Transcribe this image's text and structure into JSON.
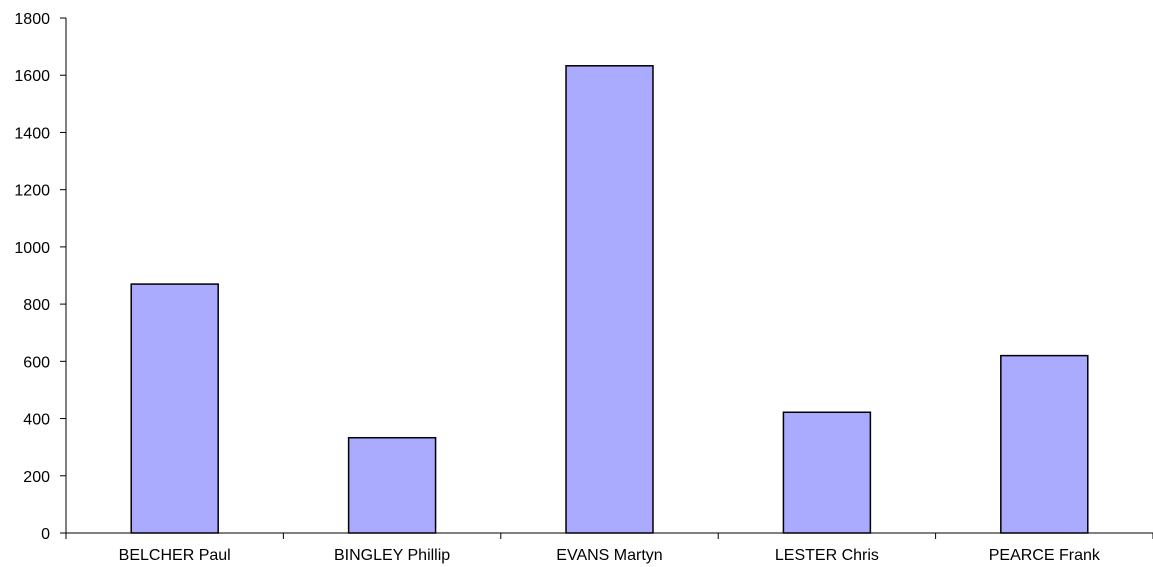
{
  "chart_data": {
    "type": "bar",
    "title": "",
    "xlabel": "",
    "ylabel": "",
    "categories": [
      "BELCHER Paul",
      "BINGLEY Phillip",
      "EVANS Martyn",
      "LESTER Chris",
      "PEARCE Frank"
    ],
    "values": [
      870,
      333,
      1633,
      422,
      620
    ],
    "ylim": [
      0,
      1800
    ],
    "yticks": [
      "0",
      "200",
      "400",
      "600",
      "800",
      "1000",
      "1200",
      "1400",
      "1600",
      "1800"
    ],
    "grid": false,
    "legend": "none",
    "colors": {
      "bar_fill": "#aaaaff",
      "bar_stroke": "#000000",
      "axis": "#000000"
    }
  }
}
